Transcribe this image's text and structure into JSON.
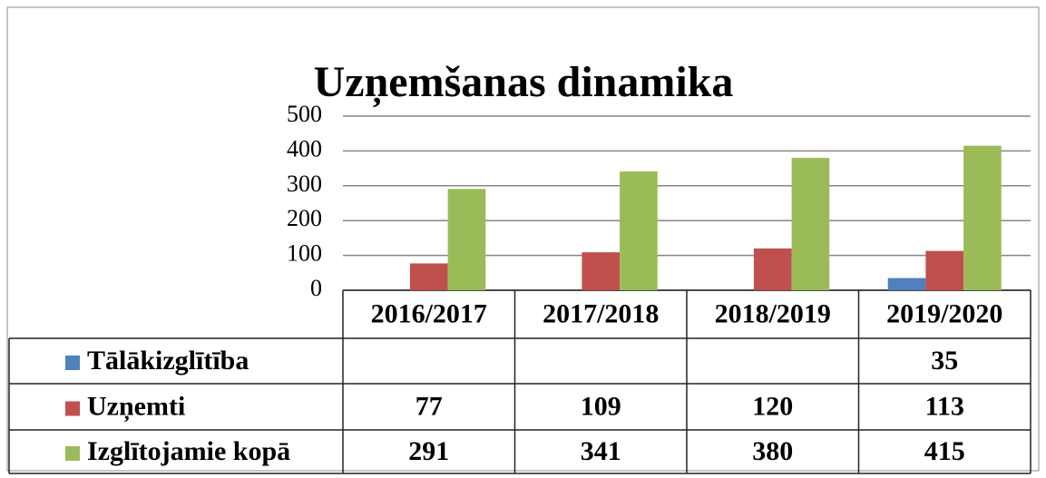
{
  "chart_data": {
    "type": "bar",
    "title": "Uzņemšanas dinamika",
    "categories": [
      "2016/2017",
      "2017/2018",
      "2018/2019",
      "2019/2020"
    ],
    "series": [
      {
        "name": "Tālākizglītība",
        "color": "#4f81bd",
        "values": [
          null,
          null,
          null,
          35
        ]
      },
      {
        "name": "Uzņemti",
        "color": "#c0504d",
        "values": [
          77,
          109,
          120,
          113
        ]
      },
      {
        "name": "Izglītojamie kopā",
        "color": "#9bbb59",
        "values": [
          291,
          341,
          380,
          415
        ]
      }
    ],
    "ylim": [
      0,
      500
    ],
    "yticks": [
      0,
      100,
      200,
      300,
      400,
      500
    ],
    "grid": true
  }
}
